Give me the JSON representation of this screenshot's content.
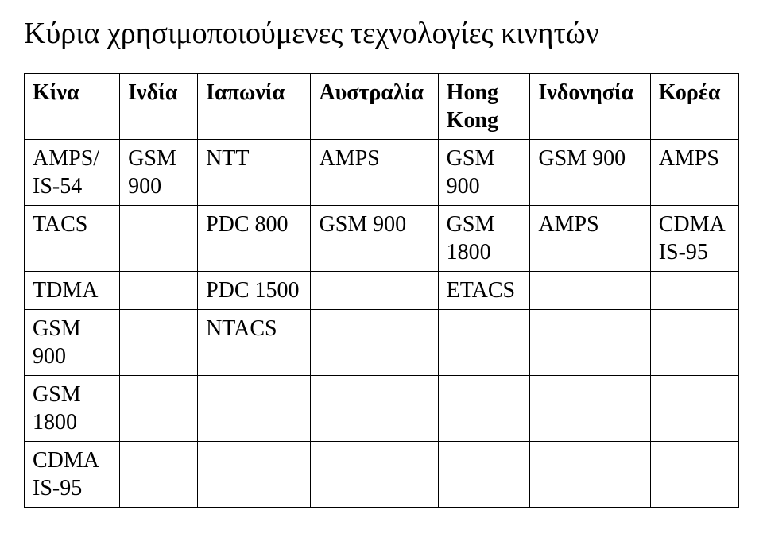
{
  "title": "Κύρια χρησιμοποιούμενες τεχνολογίες κινητών",
  "table": {
    "columns": [
      "Κίνα",
      "Ινδία",
      "Ιαπωνία",
      "Αυστραλία",
      "Hong Kong",
      "Ινδονησία",
      "Κορέα"
    ],
    "rows": [
      [
        "AMPS/ IS-54",
        "GSM 900",
        "NTT",
        "AMPS",
        "GSM 900",
        "GSM 900",
        "AMPS"
      ],
      [
        "TACS",
        "",
        "PDC 800",
        "GSM 900",
        "GSM 1800",
        "AMPS",
        "CDMA IS-95"
      ],
      [
        "TDMA",
        "",
        "PDC 1500",
        "",
        "ETACS",
        "",
        ""
      ],
      [
        "GSM 900",
        "",
        "NTACS",
        "",
        "",
        "",
        ""
      ],
      [
        "GSM 1800",
        "",
        "",
        "",
        "",
        "",
        ""
      ],
      [
        "CDMA IS-95",
        "",
        "",
        "",
        "",
        "",
        ""
      ]
    ],
    "col_widths_pct": [
      13.5,
      11,
      16,
      18,
      13,
      17,
      12.5
    ],
    "border_color": "#000000",
    "background_color": "#ffffff",
    "text_color": "#000000",
    "header_fontsize": 28,
    "cell_fontsize": 28,
    "header_fontweight": "bold",
    "font_family": "Times New Roman"
  }
}
